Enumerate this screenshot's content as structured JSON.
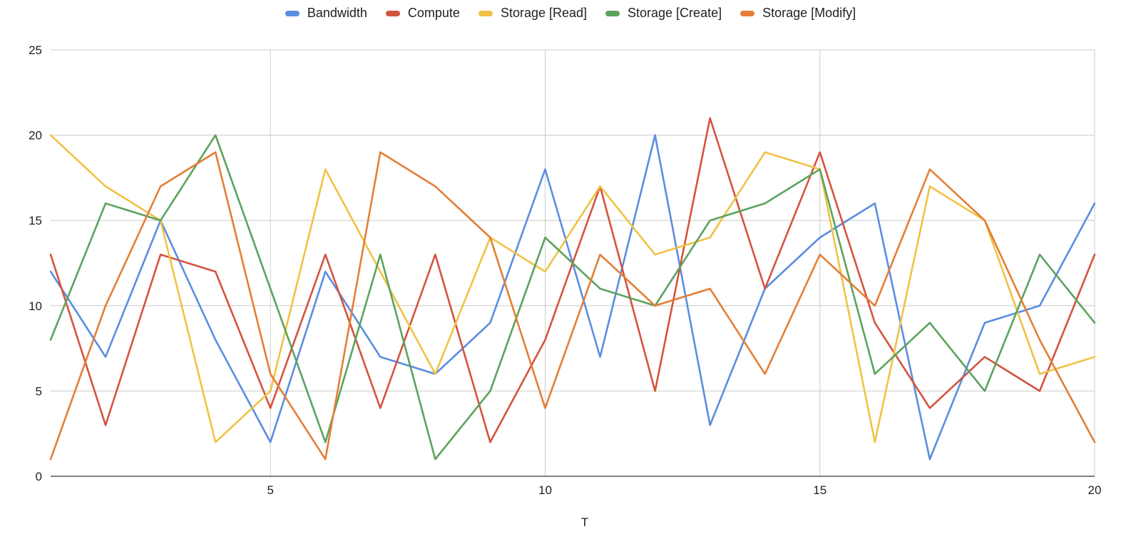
{
  "chart_data": {
    "type": "line",
    "title": "",
    "xlabel": "T",
    "ylabel": "",
    "x": [
      1,
      2,
      3,
      4,
      5,
      6,
      7,
      8,
      9,
      10,
      11,
      12,
      13,
      14,
      15,
      16,
      17,
      18,
      19,
      20
    ],
    "xlim": [
      1,
      20
    ],
    "ylim": [
      0,
      25
    ],
    "x_ticks": [
      5,
      10,
      15,
      20
    ],
    "y_ticks": [
      0,
      5,
      10,
      15,
      20,
      25
    ],
    "grid": true,
    "legend_position": "top-center",
    "series": [
      {
        "name": "Bandwidth",
        "color": "#5B8DE0",
        "values": [
          12,
          7,
          15,
          8,
          2,
          12,
          7,
          6,
          9,
          18,
          7,
          20,
          3,
          11,
          14,
          16,
          1,
          9,
          10,
          16
        ]
      },
      {
        "name": "Compute",
        "color": "#D4533F",
        "values": [
          13,
          3,
          13,
          12,
          4,
          13,
          4,
          13,
          2,
          8,
          17,
          5,
          21,
          11,
          19,
          9,
          4,
          7,
          5,
          13
        ]
      },
      {
        "name": "Storage [Read]",
        "color": "#F0C244",
        "values": [
          20,
          17,
          15,
          2,
          5,
          18,
          12,
          6,
          14,
          12,
          17,
          13,
          14,
          19,
          18,
          2,
          17,
          15,
          6,
          7
        ]
      },
      {
        "name": "Storage [Create]",
        "color": "#5BA35E",
        "values": [
          8,
          16,
          15,
          20,
          11,
          2,
          13,
          1,
          5,
          14,
          11,
          10,
          15,
          16,
          18,
          6,
          9,
          5,
          13,
          9
        ]
      },
      {
        "name": "Storage [Modify]",
        "color": "#E47E35",
        "values": [
          1,
          10,
          17,
          19,
          6,
          1,
          19,
          17,
          14,
          4,
          13,
          10,
          11,
          6,
          13,
          10,
          18,
          15,
          8,
          2
        ]
      }
    ]
  }
}
